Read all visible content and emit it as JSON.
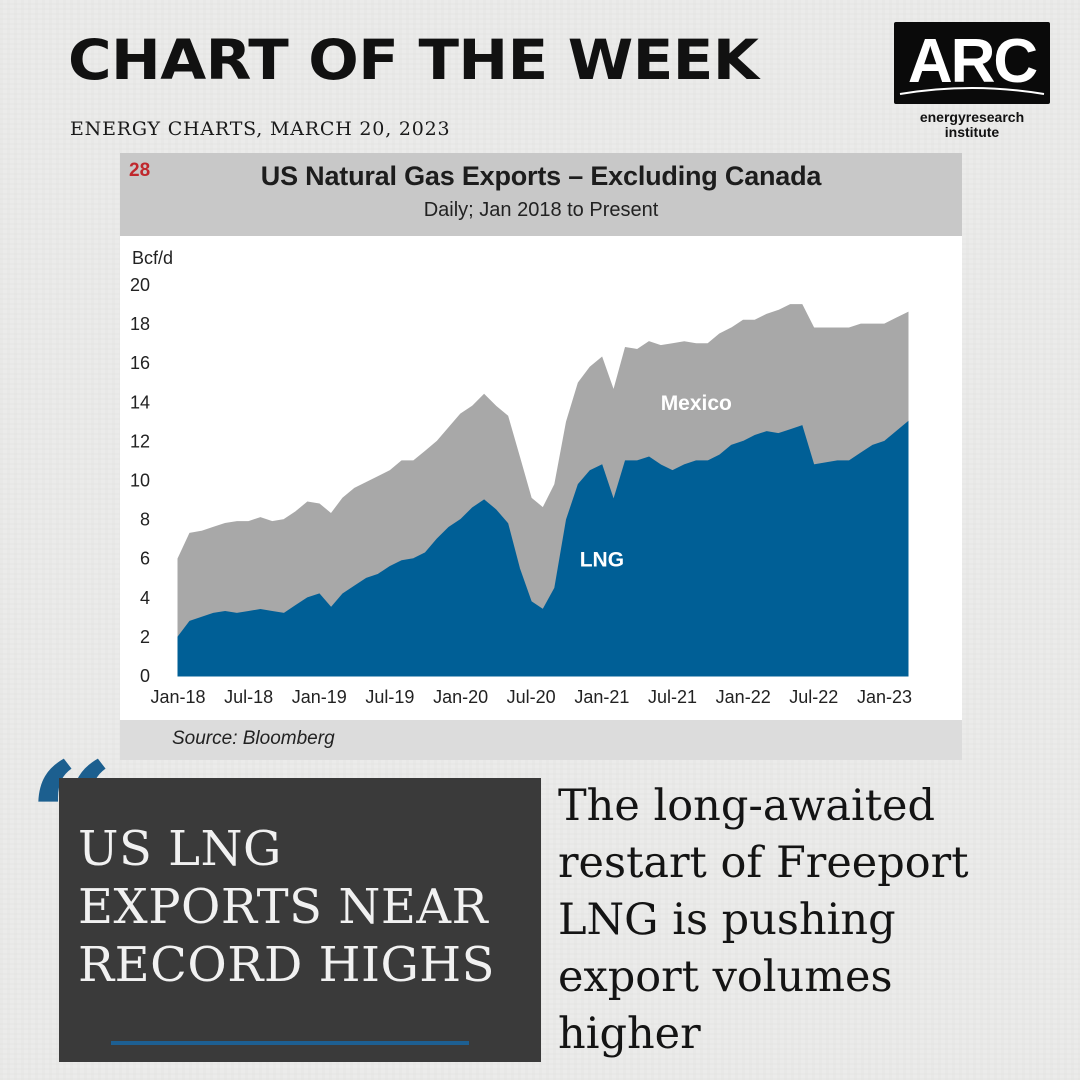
{
  "header": {
    "title": "CHART OF THE WEEK",
    "subtitle": "ENERGY CHARTS, MARCH 20, 2023"
  },
  "logo": {
    "text": "ARC",
    "line1": "energyresearch",
    "line2": "institute"
  },
  "chart": {
    "number": "28",
    "title": "US Natural Gas Exports – Excluding Canada",
    "subtitle": "Daily; Jan 2018 to Present",
    "source": "Source: Bloomberg"
  },
  "quote": {
    "mark": "“",
    "text": "US LNG EXPORTS NEAR RECORD HIGHS"
  },
  "body_text": "The long-awaited restart of Freeport LNG is pushing export volumes higher",
  "colors": {
    "lng": "#005f96",
    "mexico": "#a8a8a8",
    "accent": "#1c5f8f"
  },
  "chart_data": {
    "type": "area",
    "stacked": true,
    "ylabel": "Bcf/d",
    "ylim": [
      0,
      20
    ],
    "yticks": [
      0,
      2,
      4,
      6,
      8,
      10,
      12,
      14,
      16,
      18,
      20
    ],
    "xlim": [
      "2018-01",
      "2023-03"
    ],
    "xticks": [
      "Jan-18",
      "Jul-18",
      "Jan-19",
      "Jul-19",
      "Jan-20",
      "Jul-20",
      "Jan-21",
      "Jul-21",
      "Jan-22",
      "Jul-22",
      "Jan-23"
    ],
    "x": [
      "2018-01",
      "2018-02",
      "2018-03",
      "2018-04",
      "2018-05",
      "2018-06",
      "2018-07",
      "2018-08",
      "2018-09",
      "2018-10",
      "2018-11",
      "2018-12",
      "2019-01",
      "2019-02",
      "2019-03",
      "2019-04",
      "2019-05",
      "2019-06",
      "2019-07",
      "2019-08",
      "2019-09",
      "2019-10",
      "2019-11",
      "2019-12",
      "2020-01",
      "2020-02",
      "2020-03",
      "2020-04",
      "2020-05",
      "2020-06",
      "2020-07",
      "2020-08",
      "2020-09",
      "2020-10",
      "2020-11",
      "2020-12",
      "2021-01",
      "2021-02",
      "2021-03",
      "2021-04",
      "2021-05",
      "2021-06",
      "2021-07",
      "2021-08",
      "2021-09",
      "2021-10",
      "2021-11",
      "2021-12",
      "2022-01",
      "2022-02",
      "2022-03",
      "2022-04",
      "2022-05",
      "2022-06",
      "2022-07",
      "2022-08",
      "2022-09",
      "2022-10",
      "2022-11",
      "2022-12",
      "2023-01",
      "2023-02",
      "2023-03"
    ],
    "series": [
      {
        "name": "LNG",
        "values": [
          2.0,
          2.8,
          3.0,
          3.2,
          3.3,
          3.2,
          3.3,
          3.4,
          3.3,
          3.2,
          3.6,
          4.0,
          4.2,
          3.5,
          4.2,
          4.6,
          5.0,
          5.2,
          5.6,
          5.9,
          6.0,
          6.3,
          7.0,
          7.6,
          8.0,
          8.6,
          9.0,
          8.5,
          7.8,
          5.5,
          3.8,
          3.4,
          4.5,
          8.0,
          9.8,
          10.5,
          10.8,
          9.0,
          11.0,
          11.0,
          11.2,
          10.8,
          10.5,
          10.8,
          11.0,
          11.0,
          11.3,
          11.8,
          12.0,
          12.3,
          12.5,
          12.4,
          12.6,
          12.8,
          10.8,
          10.9,
          11.0,
          11.0,
          11.4,
          11.8,
          12.0,
          12.5,
          13.0
        ]
      },
      {
        "name": "Mexico",
        "values": [
          4.0,
          4.5,
          4.4,
          4.4,
          4.5,
          4.7,
          4.6,
          4.7,
          4.6,
          4.8,
          4.8,
          4.9,
          4.6,
          4.8,
          4.9,
          5.0,
          4.9,
          5.0,
          4.9,
          5.1,
          5.0,
          5.2,
          5.0,
          5.1,
          5.4,
          5.2,
          5.4,
          5.3,
          5.5,
          5.7,
          5.3,
          5.2,
          5.3,
          5.0,
          5.2,
          5.3,
          5.5,
          5.6,
          5.8,
          5.7,
          5.9,
          6.1,
          6.5,
          6.3,
          6.0,
          6.0,
          6.2,
          6.0,
          6.2,
          5.9,
          6.0,
          6.3,
          6.4,
          6.2,
          7.0,
          6.9,
          6.8,
          6.8,
          6.6,
          6.2,
          6.0,
          5.8,
          5.6
        ]
      }
    ],
    "annotations": [
      "Mexico",
      "LNG"
    ]
  }
}
